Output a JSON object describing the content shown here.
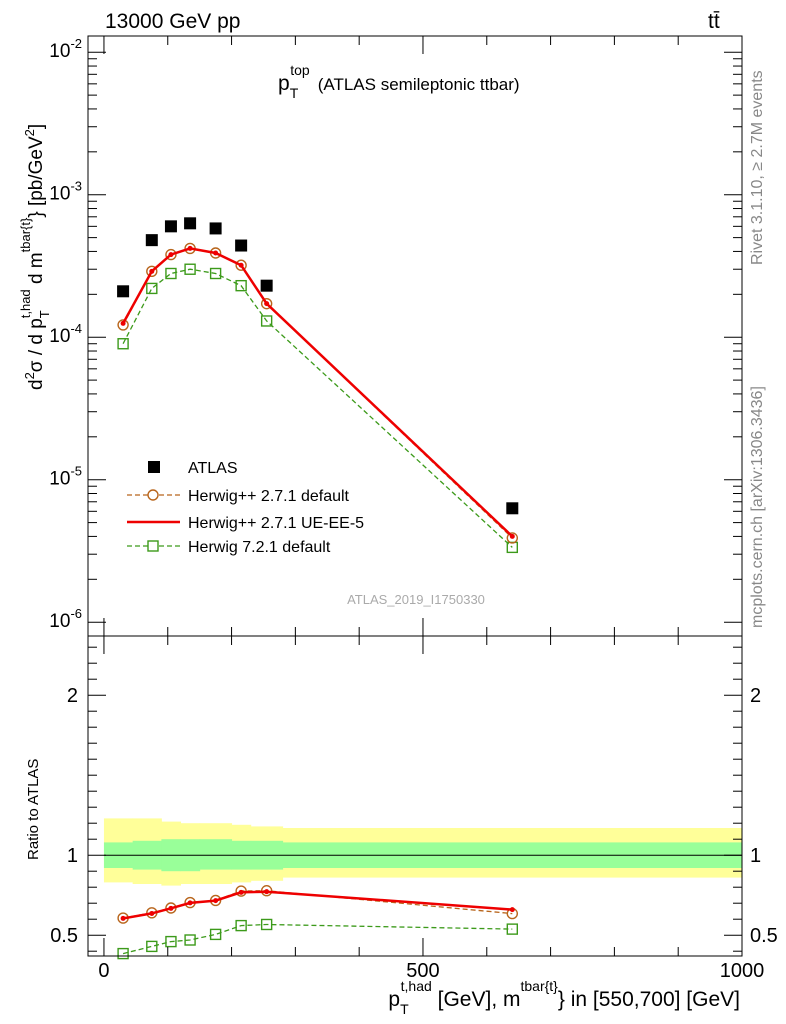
{
  "header": {
    "energy_label": "13000 GeV pp",
    "process_label": "tt̄"
  },
  "side_labels": {
    "rivet": "Rivet 3.1.10, ≥ 2.7M events",
    "mcplots": "mcplots.cern.ch [arXiv:1306.3436]"
  },
  "analysis_id": "ATLAS_2019_I1750330",
  "chart_data": [
    {
      "type": "scatter",
      "title": "p_T^top (ATLAS semileptonic ttbar)",
      "title_main": "p",
      "title_sub": "T",
      "title_sup": "top",
      "title_rest": "(ATLAS semileptonic ttbar)",
      "ylabel": "d²σ / d p_T^{t,had} d m^{tbar{t}} [pb/GeV²]",
      "yscale": "log",
      "ylim": [
        8e-07,
        0.013
      ],
      "xlim": [
        -25,
        1000
      ],
      "y_tick_labels": [
        "10",
        "10",
        "10",
        "10",
        "10"
      ],
      "y_tick_exps": [
        "-6",
        "-5",
        "-4",
        "-3",
        "-2"
      ],
      "x": [
        30,
        75,
        105,
        135,
        175,
        215,
        255,
        640
      ],
      "series": [
        {
          "name": "ATLAS",
          "style": "data",
          "color": "#000000",
          "values": [
            0.00021,
            0.00048,
            0.0006,
            0.00063,
            0.00058,
            0.00044,
            0.00023,
            6.3e-06
          ]
        },
        {
          "name": "Herwig++ 2.7.1 default",
          "style": "circle-dashed",
          "color": "#b8651c",
          "values": [
            0.000122,
            0.00029,
            0.00038,
            0.00042,
            0.00039,
            0.00032,
            0.000172,
            3.9e-06
          ]
        },
        {
          "name": "Herwig++ 2.7.1 UE-EE-5",
          "style": "solid",
          "color": "#ee0000",
          "values": [
            0.000125,
            0.00029,
            0.00038,
            0.00042,
            0.00039,
            0.00032,
            0.000172,
            4e-06
          ]
        },
        {
          "name": "Herwig 7.2.1 default",
          "style": "square-dashed",
          "color": "#3c9a1a",
          "values": [
            9e-05,
            0.00022,
            0.00028,
            0.0003,
            0.00028,
            0.00023,
            0.00013,
            3.35e-06
          ]
        }
      ]
    },
    {
      "type": "line",
      "ylabel": "Ratio to ATLAS",
      "xlabel": "p_T^{t,had} [GeV], m^{tbar{t}} in [550,700] [GeV]",
      "ylim": [
        0.37,
        2.37
      ],
      "xlim": [
        -25,
        1000
      ],
      "y_ticks": [
        "0.5",
        "1",
        "2"
      ],
      "x_ticks": [
        "0",
        "500",
        "1000"
      ],
      "x": [
        30,
        75,
        105,
        135,
        175,
        215,
        255,
        640
      ],
      "bands": {
        "bin_edges": [
          0,
          45,
          90,
          120,
          150,
          200,
          230,
          280,
          1000
        ],
        "outer_low": [
          0.83,
          0.82,
          0.81,
          0.82,
          0.82,
          0.83,
          0.84,
          0.86
        ],
        "outer_high": [
          1.23,
          1.23,
          1.21,
          1.2,
          1.2,
          1.19,
          1.18,
          1.17
        ],
        "inner_low": [
          0.92,
          0.91,
          0.9,
          0.9,
          0.91,
          0.91,
          0.91,
          0.92
        ],
        "inner_high": [
          1.08,
          1.09,
          1.1,
          1.1,
          1.1,
          1.09,
          1.09,
          1.08
        ],
        "outer_color": "#ffff99",
        "inner_color": "#99ff99"
      },
      "series": [
        {
          "name": "Herwig++ 2.7.1 default",
          "style": "circle-dashed",
          "color": "#b8651c",
          "values": [
            0.607,
            0.64,
            0.67,
            0.704,
            0.717,
            0.776,
            0.778,
            0.635
          ]
        },
        {
          "name": "Herwig++ 2.7.1 UE-EE-5",
          "style": "solid",
          "color": "#ee0000",
          "values": [
            0.605,
            0.636,
            0.668,
            0.702,
            0.716,
            0.768,
            0.772,
            0.66
          ]
        },
        {
          "name": "Herwig 7.2.1 default",
          "style": "square-dashed",
          "color": "#3c9a1a",
          "values": [
            0.385,
            0.43,
            0.46,
            0.47,
            0.505,
            0.56,
            0.567,
            0.538
          ]
        }
      ]
    }
  ]
}
